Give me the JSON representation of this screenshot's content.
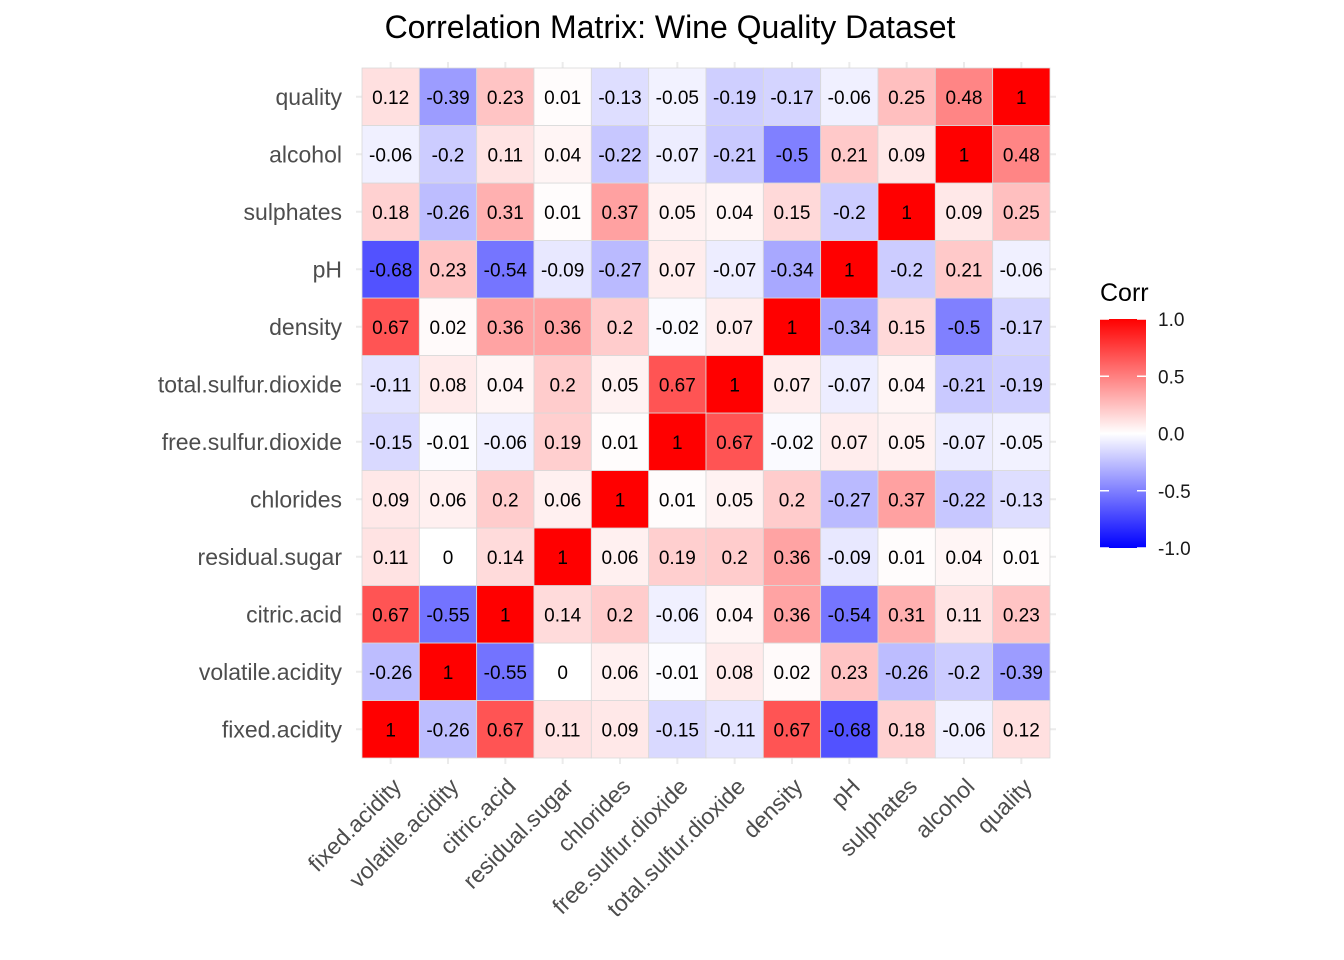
{
  "chart_data": {
    "type": "heatmap",
    "title": "Correlation Matrix: Wine Quality Dataset",
    "variables": [
      "fixed.acidity",
      "volatile.acidity",
      "citric.acid",
      "residual.sugar",
      "chlorides",
      "free.sulfur.dioxide",
      "total.sulfur.dioxide",
      "density",
      "pH",
      "sulphates",
      "alcohol",
      "quality"
    ],
    "matrix": [
      [
        1,
        -0.26,
        0.67,
        0.11,
        0.09,
        -0.15,
        -0.11,
        0.67,
        -0.68,
        0.18,
        -0.06,
        0.12
      ],
      [
        -0.26,
        1,
        -0.55,
        0,
        0.06,
        -0.01,
        0.08,
        0.02,
        0.23,
        -0.26,
        -0.2,
        -0.39
      ],
      [
        0.67,
        -0.55,
        1,
        0.14,
        0.2,
        -0.06,
        0.04,
        0.36,
        -0.54,
        0.31,
        0.11,
        0.23
      ],
      [
        0.11,
        0,
        0.14,
        1,
        0.06,
        0.19,
        0.2,
        0.36,
        -0.09,
        0.01,
        0.04,
        0.01
      ],
      [
        0.09,
        0.06,
        0.2,
        0.06,
        1,
        0.01,
        0.05,
        0.2,
        -0.27,
        0.37,
        -0.22,
        -0.13
      ],
      [
        -0.15,
        -0.01,
        -0.06,
        0.19,
        0.01,
        1,
        0.67,
        -0.02,
        0.07,
        0.05,
        -0.07,
        -0.05
      ],
      [
        -0.11,
        0.08,
        0.04,
        0.2,
        0.05,
        0.67,
        1,
        0.07,
        -0.07,
        0.04,
        -0.21,
        -0.19
      ],
      [
        0.67,
        0.02,
        0.36,
        0.36,
        0.2,
        -0.02,
        0.07,
        1,
        -0.34,
        0.15,
        -0.5,
        -0.17
      ],
      [
        -0.68,
        0.23,
        -0.54,
        -0.09,
        -0.27,
        0.07,
        -0.07,
        -0.34,
        1,
        -0.2,
        0.21,
        -0.06
      ],
      [
        0.18,
        -0.26,
        0.31,
        0.01,
        0.37,
        0.05,
        0.04,
        0.15,
        -0.2,
        1,
        0.09,
        0.25
      ],
      [
        -0.06,
        -0.2,
        0.11,
        0.04,
        -0.22,
        -0.07,
        -0.21,
        -0.5,
        0.21,
        0.09,
        1,
        0.48
      ],
      [
        0.12,
        -0.39,
        0.23,
        0.01,
        -0.13,
        -0.05,
        -0.19,
        -0.17,
        -0.06,
        0.25,
        0.48,
        1
      ]
    ],
    "color_scale": {
      "low": "#0000FF",
      "mid": "#FFFFFF",
      "high": "#FF0000",
      "limits": [
        -1,
        1
      ]
    },
    "legend": {
      "title": "Corr",
      "placement": "right",
      "ticks": [
        "1.0",
        "0.5",
        "0.0",
        "-0.5",
        "-1.0"
      ],
      "tick_values": [
        1,
        0.5,
        0,
        -0.5,
        -1
      ]
    },
    "grid": true
  }
}
